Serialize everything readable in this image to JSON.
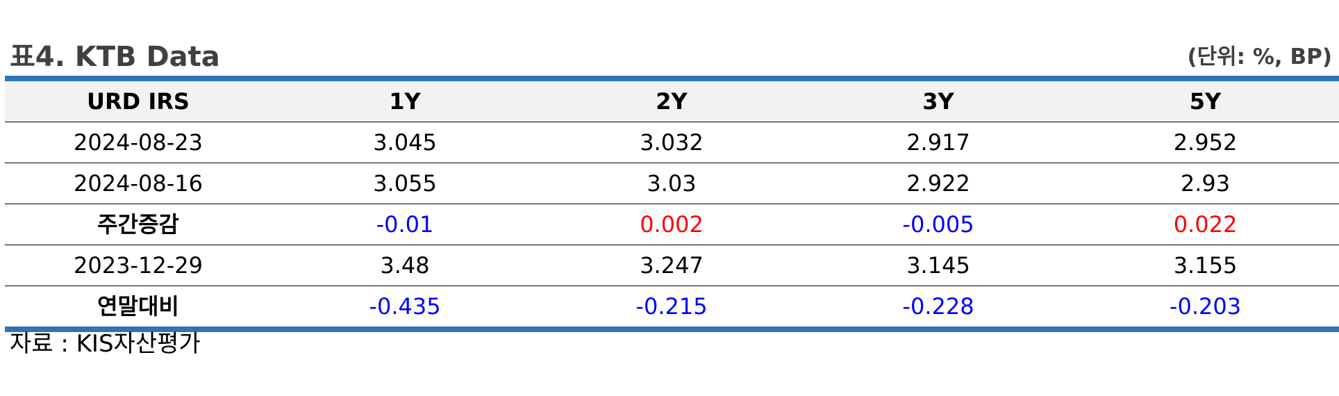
{
  "title": "표4. KTB Data",
  "unit_note": "(단위: %, BP)",
  "columns": [
    "URD IRS",
    "1Y",
    "2Y",
    "3Y",
    "5Y"
  ],
  "rows": [
    {
      "label": "2024-08-23",
      "values": [
        "3.045",
        "3.032",
        "2.917",
        "2.952"
      ]
    },
    {
      "label": "2024-08-16",
      "values": [
        "3.055",
        "3.03",
        "2.922",
        "2.93"
      ]
    },
    {
      "label": "주간증감",
      "values": [
        "-0.01",
        "0.002",
        "-0.005",
        "0.022"
      ]
    },
    {
      "label": "2023-12-29",
      "values": [
        "3.48",
        "3.247",
        "3.145",
        "3.155"
      ]
    },
    {
      "label": "연말대비",
      "values": [
        "-0.435",
        "-0.215",
        "-0.228",
        "-0.203"
      ]
    }
  ],
  "source": "자료 : KIS자산평가",
  "colors": {
    "rule": "#2e75b6",
    "header_bg": "#f2f2f2",
    "negative": "#0000ff",
    "positive": "#ff0000",
    "title": "#404040"
  }
}
